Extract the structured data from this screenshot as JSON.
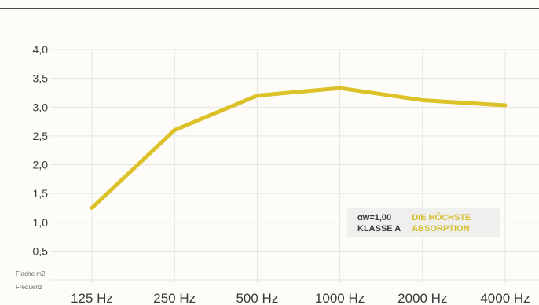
{
  "chart_data": {
    "type": "line",
    "categories": [
      "125 Hz",
      "250 Hz",
      "500 Hz",
      "1000 Hz",
      "2000 Hz",
      "4000 Hz"
    ],
    "values": [
      1.25,
      2.6,
      3.2,
      3.33,
      3.12,
      3.03
    ],
    "yticks": [
      "4,0",
      "3,5",
      "3,0",
      "2,5",
      "2,0",
      "1,5",
      "1,0",
      "0,5"
    ],
    "ylim": [
      0,
      4
    ],
    "ylabel": "Flache m2",
    "xlabel": "Frequenz",
    "grid": true,
    "line_color": "#dcc228"
  },
  "legend": {
    "line1_left": "αw=1,00",
    "line2_left": "KLASSE A",
    "line1_right": "DIE HÖCHSTE",
    "line2_right": "ABSORPTION",
    "accent_color": "#d4be2a"
  }
}
